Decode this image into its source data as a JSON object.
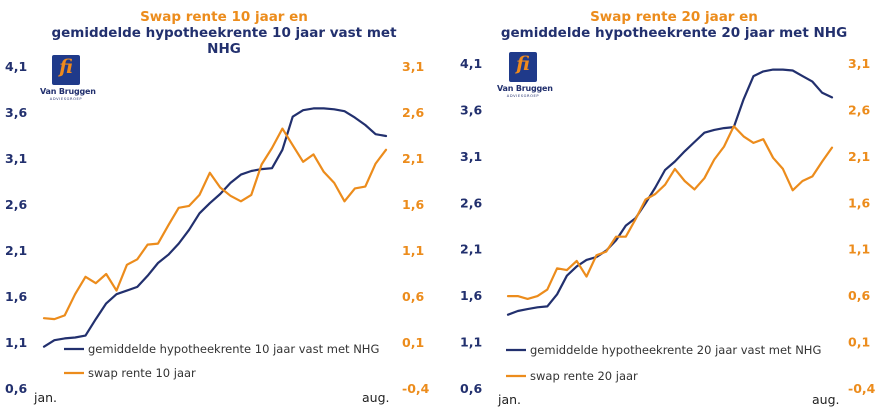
{
  "logo": {
    "name": "Van Bruggen",
    "sub": "ADVIESGROEP",
    "mark": "fi"
  },
  "colors": {
    "navy": "#22306e",
    "orange": "#ec8c1c"
  },
  "chart_data": [
    {
      "type": "line",
      "title": [
        "Swap rente 10 jaar en",
        "gemiddelde hypotheekrente 10 jaar vast met",
        "NHG"
      ],
      "x_labels": [
        "jan.",
        "aug."
      ],
      "left_axis": {
        "min": 0.6,
        "max": 4.1,
        "ticks": [
          "4,1",
          "3,6",
          "3,1",
          "2,6",
          "2,1",
          "1,6",
          "1,1",
          "0,6"
        ]
      },
      "right_axis": {
        "min": -0.4,
        "max": 3.1,
        "ticks": [
          "3,1",
          "2,6",
          "2,1",
          "1,6",
          "1,1",
          "0,6",
          "0,1",
          "-0,4"
        ]
      },
      "series": [
        {
          "name": "gemiddelde hypotheekrente 10 jaar vast met NHG",
          "axis": "left",
          "color": "#22306e",
          "values": [
            1.06,
            1.13,
            1.15,
            1.16,
            1.18,
            1.36,
            1.53,
            1.63,
            1.67,
            1.71,
            1.83,
            1.97,
            2.06,
            2.18,
            2.33,
            2.51,
            2.62,
            2.72,
            2.84,
            2.93,
            2.97,
            2.99,
            3.0,
            3.2,
            3.56,
            3.63,
            3.65,
            3.65,
            3.64,
            3.62,
            3.55,
            3.47,
            3.37,
            3.35
          ]
        },
        {
          "name": "swap rente 10 jaar",
          "axis": "right",
          "color": "#ec8c1c",
          "values": [
            0.37,
            0.36,
            0.4,
            0.63,
            0.82,
            0.75,
            0.85,
            0.67,
            0.95,
            1.01,
            1.17,
            1.18,
            1.38,
            1.57,
            1.59,
            1.71,
            1.95,
            1.79,
            1.7,
            1.64,
            1.71,
            2.04,
            2.22,
            2.43,
            2.25,
            2.07,
            2.15,
            1.96,
            1.84,
            1.64,
            1.78,
            1.8,
            2.05,
            2.2
          ]
        }
      ]
    },
    {
      "type": "line",
      "title": [
        "Swap rente 20 jaar en",
        "gemiddelde hypotheekrente 20 jaar met NHG"
      ],
      "x_labels": [
        "jan.",
        "aug."
      ],
      "left_axis": {
        "min": 0.6,
        "max": 4.1,
        "ticks": [
          "4,1",
          "3,6",
          "3,1",
          "2,6",
          "2,1",
          "1,6",
          "1,1",
          "0,6"
        ]
      },
      "right_axis": {
        "min": -0.4,
        "max": 3.1,
        "ticks": [
          "3,1",
          "2,6",
          "2,1",
          "1,6",
          "1,1",
          "0,6",
          "0,1",
          "-0,4"
        ]
      },
      "series": [
        {
          "name": "gemiddelde hypotheekrente 20 jaar vast met NHG",
          "axis": "left",
          "color": "#22306e",
          "values": [
            1.4,
            1.44,
            1.46,
            1.48,
            1.49,
            1.62,
            1.82,
            1.92,
            1.99,
            2.02,
            2.09,
            2.2,
            2.36,
            2.44,
            2.6,
            2.77,
            2.96,
            3.05,
            3.16,
            3.26,
            3.36,
            3.39,
            3.41,
            3.42,
            3.72,
            3.97,
            4.02,
            4.04,
            4.04,
            4.03,
            3.97,
            3.91,
            3.79,
            3.74
          ]
        },
        {
          "name": "swap rente 20 jaar",
          "axis": "right",
          "color": "#ec8c1c",
          "values": [
            0.6,
            0.6,
            0.57,
            0.6,
            0.67,
            0.9,
            0.88,
            0.98,
            0.81,
            1.04,
            1.08,
            1.24,
            1.24,
            1.43,
            1.64,
            1.7,
            1.8,
            1.97,
            1.84,
            1.75,
            1.87,
            2.07,
            2.21,
            2.43,
            2.32,
            2.25,
            2.29,
            2.09,
            1.97,
            1.74,
            1.84,
            1.89,
            2.05,
            2.2
          ]
        }
      ]
    }
  ]
}
